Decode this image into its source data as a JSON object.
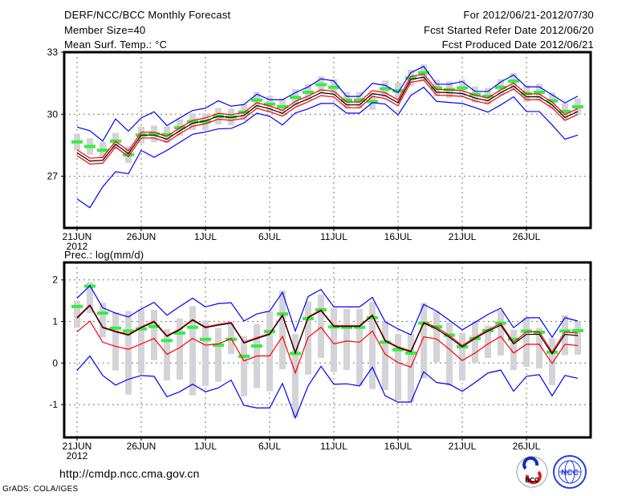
{
  "header": {
    "title": "DERF/NCC/BCC Monthly Forecast",
    "member_size": "Member Size=40",
    "variable": "Mean Surf. Temp.: °C",
    "period": "For 2012/06/21-2012/07/30",
    "start_date": "Fcst Started Refer Date 2012/06/20",
    "produced_date": "Fcst Produced Date 2012/06/21"
  },
  "footer": {
    "url": "http://cmdp.ncc.cma.gov.cn",
    "credit": "GrADS: COLA/IGES",
    "logo_bcc": "BCC",
    "logo_ncc": "NCC"
  },
  "colors": {
    "mean": "#000000",
    "red": "#ff0000",
    "blue": "#0000ff",
    "green": "#33ee44",
    "gray": "#d3d3d8"
  },
  "chart_data": [
    {
      "type": "line",
      "title": "Mean Surf. Temp.: °C",
      "x_ticks": [
        "21JUN",
        "26JUN",
        "1JUL",
        "6JUL",
        "11JUL",
        "16JUL",
        "21JUL",
        "26JUL"
      ],
      "x_year": "2012",
      "y_ticks": [
        "27",
        "30",
        "33"
      ],
      "y_tick_values": [
        27,
        30,
        33
      ],
      "ylim": [
        24.5,
        33
      ],
      "days": 40,
      "grid": true,
      "series": [
        {
          "name": "ensemble mean",
          "color": "mean",
          "values": [
            28.14,
            27.73,
            27.77,
            28.55,
            28.09,
            28.99,
            28.99,
            28.79,
            29.2,
            29.56,
            29.68,
            29.9,
            29.84,
            29.94,
            30.42,
            30.26,
            30.04,
            30.48,
            30.74,
            31.04,
            30.97,
            30.45,
            30.45,
            31.0,
            30.9,
            30.55,
            31.69,
            31.79,
            31.06,
            31.04,
            31.0,
            30.78,
            30.65,
            31.04,
            31.36,
            30.84,
            30.84,
            30.45,
            29.84,
            30.13
          ]
        },
        {
          "name": "upper max",
          "color": "blue",
          "values": [
            29.38,
            29.2,
            28.7,
            29.77,
            29.18,
            29.82,
            30.12,
            29.45,
            29.82,
            30.18,
            30.29,
            30.65,
            30.39,
            30.47,
            30.97,
            30.7,
            30.7,
            31.04,
            31.32,
            31.71,
            31.61,
            30.86,
            30.86,
            31.49,
            31.4,
            31.04,
            32.01,
            32.31,
            31.45,
            31.45,
            31.58,
            31.1,
            31.1,
            31.56,
            31.9,
            31.32,
            31.32,
            30.94,
            30.55,
            30.87
          ]
        },
        {
          "name": "lower min",
          "color": "blue",
          "values": [
            25.9,
            25.48,
            26.49,
            27.22,
            27.12,
            28.25,
            27.92,
            28.25,
            28.64,
            29.03,
            29.14,
            29.29,
            29.31,
            29.58,
            30.05,
            29.9,
            29.48,
            30.06,
            30.26,
            30.52,
            30.52,
            30.05,
            30.05,
            30.56,
            30.49,
            29.97,
            30.91,
            31.3,
            30.62,
            30.57,
            30.52,
            30.32,
            30.1,
            30.45,
            30.84,
            30.13,
            30.13,
            29.48,
            28.79,
            28.99
          ]
        }
      ],
      "red_band_offset": 0.14,
      "green_marks": [
        28.66,
        28.44,
        28.26,
        28.7,
        28.04,
        28.99,
        29.05,
        29.01,
        29.35,
        29.64,
        29.64,
        29.9,
        29.87,
        30.1,
        30.68,
        30.49,
        30.36,
        30.81,
        31.06,
        31.43,
        31.3,
        30.68,
        30.68,
        30.61,
        31.23,
        31.13,
        31.75,
        32.01,
        31.27,
        31.19,
        31.27,
        30.95,
        30.87,
        31.3,
        31.6,
        31.0,
        31.06,
        30.65,
        30.13,
        30.36
      ],
      "gray_spread": 0.4
    },
    {
      "type": "line",
      "title": "Prec.: log(mm/d)",
      "x_ticks": [
        "21JUN",
        "26JUN",
        "1JUL",
        "6JUL",
        "11JUL",
        "16JUL",
        "21JUL",
        "26JUL"
      ],
      "x_year": "2012",
      "y_ticks": [
        "-1",
        "0",
        "1",
        "2"
      ],
      "y_tick_values": [
        -1,
        0,
        1,
        2
      ],
      "ylim": [
        -1.79,
        2.42
      ],
      "days": 40,
      "grid": true,
      "series": [
        {
          "name": "ensemble mean",
          "color": "mean",
          "values": [
            1.08,
            1.38,
            0.85,
            0.75,
            0.67,
            0.85,
            0.99,
            0.64,
            0.8,
            1.03,
            0.85,
            0.91,
            0.96,
            0.48,
            0.59,
            0.69,
            1.14,
            0.24,
            1.09,
            1.26,
            0.88,
            0.88,
            0.88,
            1.14,
            0.53,
            0.37,
            0.27,
            0.96,
            0.82,
            0.62,
            0.39,
            0.59,
            0.77,
            0.91,
            0.46,
            0.69,
            0.69,
            0.22,
            0.69,
            0.66
          ]
        },
        {
          "name": "upper red",
          "color": "red",
          "values": [
            1.1,
            1.4,
            0.87,
            0.77,
            0.69,
            0.87,
            1.01,
            0.66,
            0.82,
            1.05,
            0.87,
            0.93,
            0.98,
            0.5,
            0.61,
            0.71,
            1.16,
            0.26,
            1.11,
            1.28,
            0.9,
            0.9,
            0.9,
            1.16,
            0.55,
            0.39,
            0.29,
            0.98,
            0.86,
            0.66,
            0.42,
            0.62,
            0.8,
            0.95,
            0.5,
            0.75,
            0.75,
            0.26,
            0.75,
            0.72
          ]
        },
        {
          "name": "lower red",
          "color": "red",
          "values": [
            0.75,
            1.01,
            0.5,
            0.4,
            0.33,
            0.46,
            0.59,
            0.21,
            0.37,
            0.59,
            0.43,
            0.46,
            0.59,
            0.05,
            0.17,
            0.17,
            0.64,
            -0.24,
            0.62,
            0.86,
            0.46,
            0.53,
            0.5,
            0.77,
            0.21,
            0.01,
            -0.1,
            0.63,
            0.58,
            0.33,
            0.06,
            0.24,
            0.46,
            0.64,
            0.24,
            0.45,
            0.45,
            -0.01,
            0.45,
            0.42
          ]
        },
        {
          "name": "upper max",
          "color": "blue",
          "values": [
            1.56,
            1.86,
            1.33,
            1.2,
            1.11,
            1.3,
            1.46,
            1.15,
            1.36,
            1.56,
            1.35,
            1.43,
            1.45,
            1.01,
            1.18,
            1.25,
            1.7,
            0.77,
            1.6,
            1.77,
            1.35,
            1.35,
            1.35,
            1.58,
            0.99,
            0.82,
            0.68,
            1.41,
            1.25,
            1.03,
            0.8,
            0.98,
            1.17,
            1.32,
            0.85,
            1.09,
            1.09,
            0.62,
            1.09,
            1.01
          ]
        },
        {
          "name": "lower min",
          "color": "blue",
          "values": [
            -0.18,
            0.17,
            -0.3,
            -0.53,
            -0.39,
            -0.3,
            -0.32,
            -0.81,
            -0.69,
            -0.51,
            -0.69,
            -0.6,
            -0.41,
            -1.02,
            -1.08,
            -1.08,
            -0.49,
            -1.32,
            -0.55,
            -0.08,
            -0.51,
            -0.5,
            -0.55,
            -0.1,
            -0.79,
            -0.94,
            -0.94,
            -0.21,
            -0.47,
            -0.51,
            -0.68,
            -0.47,
            -0.24,
            -0.17,
            -0.68,
            -0.32,
            -0.28,
            -0.79,
            -0.3,
            -0.37
          ]
        }
      ],
      "green_marks": [
        1.36,
        1.85,
        1.2,
        0.84,
        0.77,
        0.82,
        0.88,
        0.54,
        0.72,
        0.86,
        0.57,
        0.43,
        0.57,
        0.16,
        0.41,
        0.76,
        1.18,
        0.23,
        1.07,
        1.28,
        0.87,
        0.86,
        0.86,
        1.09,
        0.5,
        0.32,
        0.24,
        0.96,
        0.87,
        0.67,
        0.39,
        0.59,
        0.78,
        0.96,
        0.57,
        0.77,
        0.74,
        0.26,
        0.77,
        0.78
      ],
      "gray_low": [
        0.85,
        1.2,
        0.62,
        -0.18,
        -0.76,
        -0.25,
        0.07,
        -0.42,
        -0.4,
        -0.78,
        -0.55,
        -0.45,
        0.22,
        -0.8,
        -0.6,
        -0.68,
        -0.15,
        -1.3,
        -0.28,
        0.12,
        -0.22,
        -0.17,
        -0.55,
        -0.63,
        -0.65,
        -0.9,
        -0.95,
        -0.37,
        0.02,
        -0.55,
        -0.42,
        0.0,
        0.12,
        0.18,
        -0.17,
        -0.09,
        -0.13,
        -0.53,
        0.19,
        0.2
      ],
      "gray_high": [
        1.5,
        1.95,
        1.45,
        1.22,
        1.25,
        1.3,
        1.28,
        0.82,
        1.07,
        1.37,
        1.02,
        0.84,
        0.97,
        0.65,
        0.94,
        1.24,
        1.74,
        0.7,
        1.48,
        1.65,
        1.32,
        1.3,
        1.3,
        1.47,
        1.0,
        0.7,
        0.7,
        1.45,
        1.25,
        0.98,
        0.72,
        1.0,
        0.9,
        1.27,
        0.8,
        1.08,
        0.85,
        0.6,
        1.15,
        1.0
      ]
    }
  ]
}
